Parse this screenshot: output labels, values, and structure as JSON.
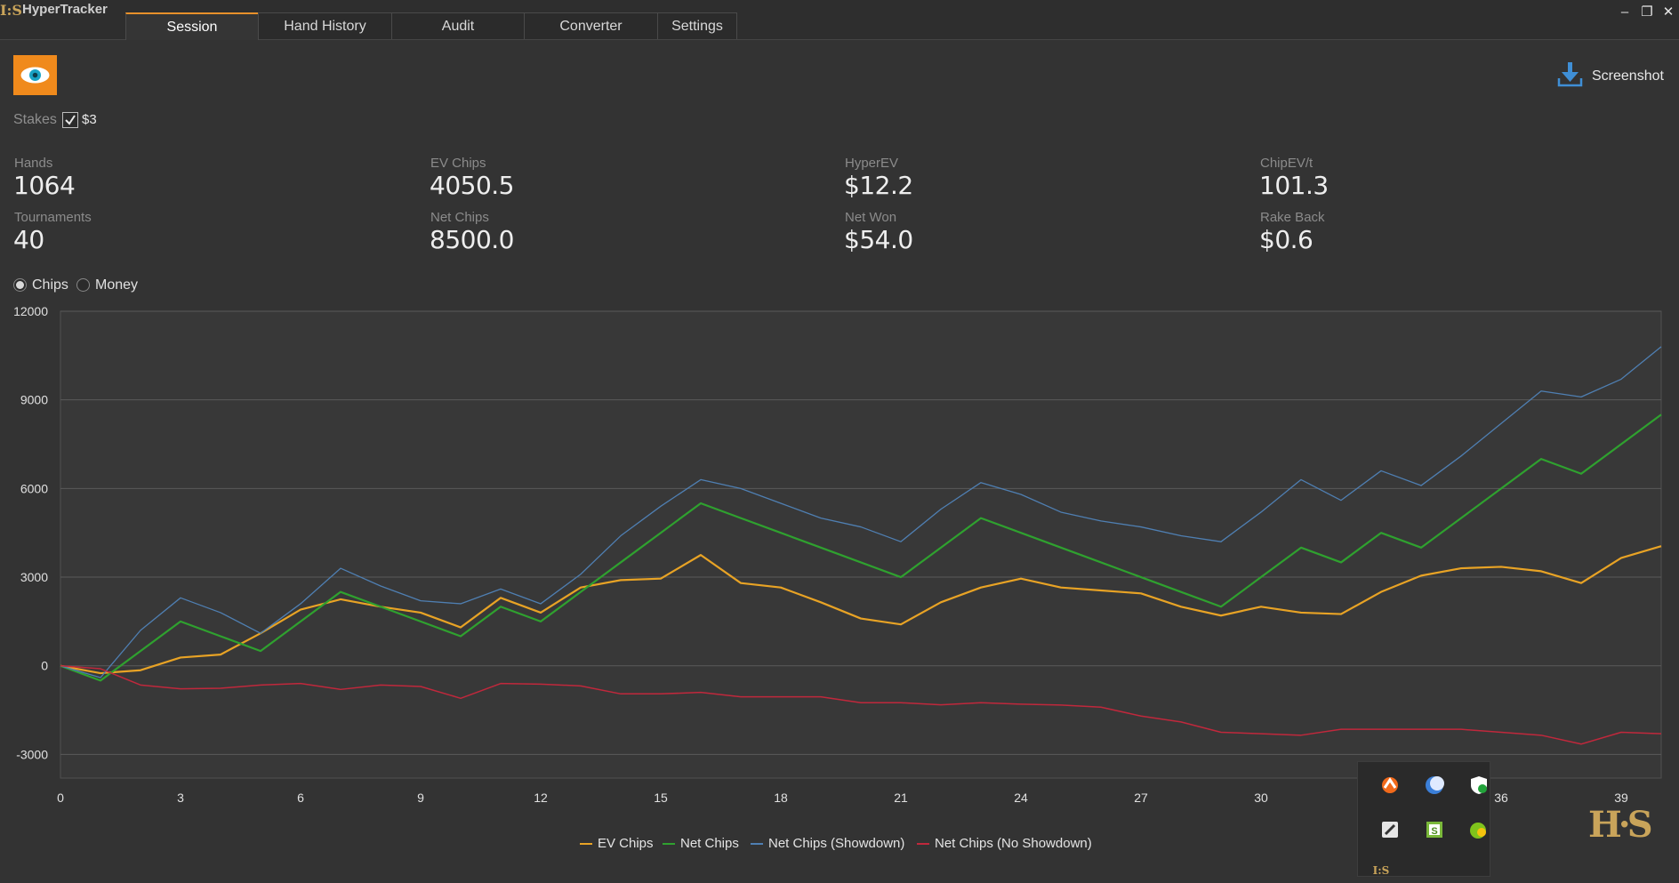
{
  "app": {
    "logo": "I:S",
    "title": "HyperTracker"
  },
  "tabs": [
    "Session",
    "Hand History",
    "Audit",
    "Converter",
    "Settings"
  ],
  "active_tab": "Session",
  "window_controls": {
    "minimize": "–",
    "restore": "❐",
    "close": "✕"
  },
  "toolbar": {
    "eye_icon": "eye-icon",
    "screenshot_label": "Screenshot",
    "screenshot_icon": "download-icon"
  },
  "stakes": {
    "label": "Stakes",
    "checked": true,
    "value": "$3"
  },
  "stats": {
    "hands": {
      "label": "Hands",
      "value": "1064"
    },
    "tournaments": {
      "label": "Tournaments",
      "value": "40"
    },
    "ev_chips": {
      "label": "EV Chips",
      "value": "4050.5"
    },
    "net_chips": {
      "label": "Net Chips",
      "value": "8500.0"
    },
    "hyper_ev": {
      "label": "HyperEV",
      "value": "$12.2"
    },
    "net_won": {
      "label": "Net Won",
      "value": "$54.0"
    },
    "chip_ev_t": {
      "label": "ChipEV/t",
      "value": "101.3"
    },
    "rake_back": {
      "label": "Rake Back",
      "value": "$0.6"
    }
  },
  "mode": {
    "chips_label": "Chips",
    "money_label": "Money",
    "selected": "Chips"
  },
  "chart_data": {
    "type": "line",
    "title": "",
    "xlabel": "",
    "ylabel": "",
    "xlim": [
      0,
      40
    ],
    "ylim": [
      -3800,
      12000
    ],
    "xticks": [
      0,
      3,
      6,
      9,
      12,
      15,
      18,
      21,
      24,
      27,
      30,
      33,
      36,
      39
    ],
    "yticks": [
      12000,
      9000,
      6000,
      3000,
      0,
      -3000
    ],
    "grid": true,
    "legend_position": "bottom",
    "series": [
      {
        "name": "EV Chips",
        "color": "#e8a325",
        "values": [
          0,
          -250,
          -150,
          280,
          380,
          1100,
          1900,
          2250,
          2000,
          1800,
          1300,
          2300,
          1800,
          2650,
          2900,
          2950,
          3750,
          2800,
          2650,
          2150,
          1600,
          1400,
          2150,
          2650,
          2950,
          2650,
          2550,
          2450,
          2000,
          1700,
          2000,
          1800,
          1750,
          2500,
          3050,
          3300,
          3350,
          3200,
          2800,
          3650,
          4050
        ]
      },
      {
        "name": "Net Chips",
        "color": "#2fa12f",
        "values": [
          0,
          -500,
          500,
          1500,
          1000,
          500,
          1500,
          2500,
          2000,
          1500,
          1000,
          2000,
          1500,
          2500,
          3500,
          4500,
          5500,
          5000,
          4500,
          4000,
          3500,
          3000,
          4000,
          5000,
          4500,
          4000,
          3500,
          3000,
          2500,
          2000,
          3000,
          4000,
          3500,
          4500,
          4000,
          5000,
          6000,
          7000,
          6500,
          7500,
          8500
        ]
      },
      {
        "name": "Net Chips (Showdown)",
        "color": "#4f7fb2",
        "values": [
          0,
          -400,
          1200,
          2300,
          1800,
          1100,
          2100,
          3300,
          2700,
          2200,
          2100,
          2600,
          2100,
          3100,
          4400,
          5400,
          6300,
          6000,
          5500,
          5000,
          4700,
          4200,
          5300,
          6200,
          5800,
          5200,
          4900,
          4700,
          4400,
          4200,
          5200,
          6300,
          5600,
          6600,
          6100,
          7100,
          8200,
          9300,
          9100,
          9700,
          10800
        ]
      },
      {
        "name": "Net Chips (No Showdown)",
        "color": "#c0283c",
        "values": [
          0,
          -100,
          -650,
          -780,
          -760,
          -650,
          -600,
          -800,
          -650,
          -700,
          -1100,
          -600,
          -620,
          -680,
          -950,
          -950,
          -900,
          -1050,
          -1050,
          -1050,
          -1250,
          -1250,
          -1320,
          -1250,
          -1300,
          -1330,
          -1400,
          -1700,
          -1900,
          -2250,
          -2300,
          -2350,
          -2150,
          -2150,
          -2150,
          -2150,
          -2250,
          -2350,
          -2650,
          -2250,
          -2300
        ]
      }
    ]
  },
  "tray": {
    "icons": [
      "avast-icon",
      "crescent-icon",
      "shield-check-icon",
      "snip-tool-icon",
      "s-app-icon",
      "lime-alert-icon",
      "hs-tray-icon"
    ]
  },
  "watermark": {
    "logo": "H·S"
  }
}
